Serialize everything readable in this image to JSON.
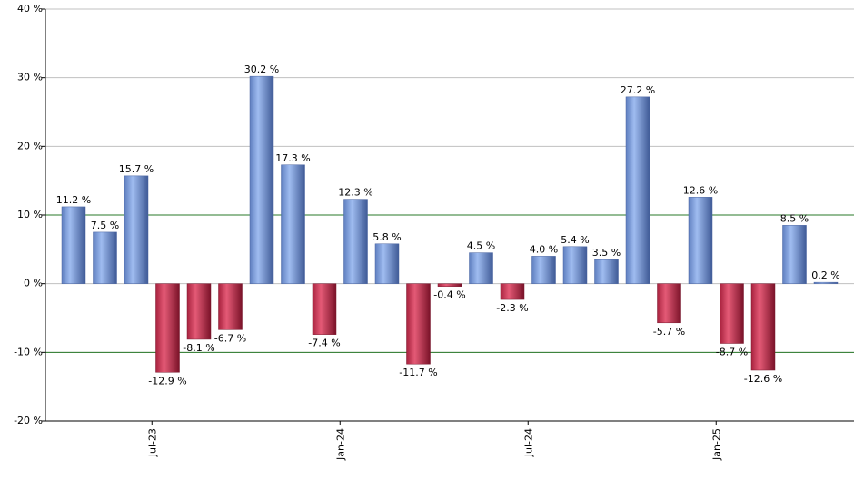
{
  "colors": {
    "positive": "#7f9ed6",
    "negative": "#c23a55",
    "gridline": "#c0c0c0",
    "reference_line": "#2a7a2a",
    "axis": "#000000"
  },
  "chart_data": {
    "type": "bar",
    "y_unit_suffix": " %",
    "ylim": [
      -20,
      40
    ],
    "yticks": [
      -20,
      -10,
      0,
      10,
      20,
      30,
      40
    ],
    "ytick_labels": [
      "-20 %",
      "-10 %",
      "0 %",
      "10 %",
      "20 %",
      "30 %",
      "40 %"
    ],
    "reference_lines": [
      10,
      -10
    ],
    "grid": true,
    "values": [
      11.2,
      7.5,
      15.7,
      -12.9,
      -8.1,
      -6.7,
      30.2,
      17.3,
      -7.4,
      12.3,
      5.8,
      -11.7,
      -0.4,
      4.5,
      -2.3,
      4.0,
      5.4,
      3.5,
      27.2,
      -5.7,
      12.6,
      -8.7,
      -12.6,
      8.5,
      0.2
    ],
    "value_labels": [
      "11.2 %",
      "7.5 %",
      "15.7 %",
      "-12.9 %",
      "-8.1 %",
      "-6.7 %",
      "30.2 %",
      "17.3 %",
      "-7.4 %",
      "12.3 %",
      "5.8 %",
      "-11.7 %",
      "-0.4 %",
      "4.5 %",
      "-2.3 %",
      "4.0 %",
      "5.4 %",
      "3.5 %",
      "27.2 %",
      "-5.7 %",
      "12.6 %",
      "-8.7 %",
      "-12.6 %",
      "8.5 %",
      "0.2 %"
    ],
    "xtick_labels": [
      {
        "index": 2.5,
        "label": "Jul-23"
      },
      {
        "index": 8.5,
        "label": "Jan-24"
      },
      {
        "index": 14.5,
        "label": "Jul-24"
      },
      {
        "index": 20.5,
        "label": "Jan-25"
      }
    ]
  }
}
